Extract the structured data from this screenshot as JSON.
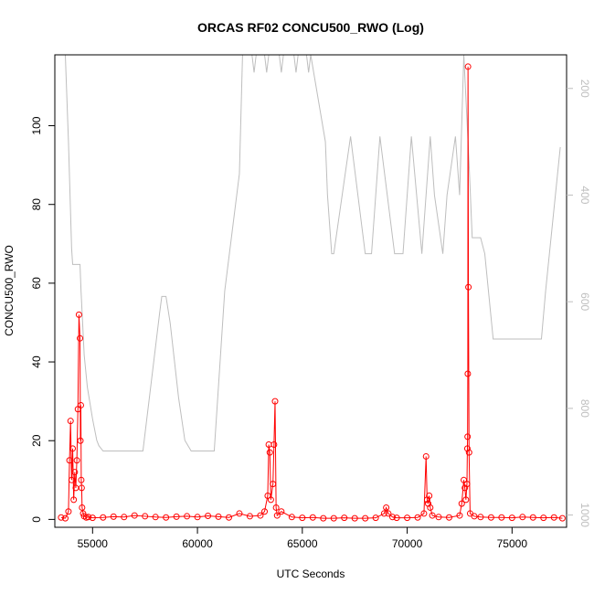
{
  "chart_data": {
    "type": "line",
    "title": "ORCAS RF02 CONCU500_RWO (Log)",
    "xlabel": "UTC Seconds",
    "ylabel": "CONCU500_RWO",
    "xlim": [
      53200,
      77600
    ],
    "ylim": [
      -2,
      118
    ],
    "x_ticks": [
      55000,
      60000,
      65000,
      70000,
      75000
    ],
    "y_ticks": [
      0,
      20,
      40,
      60,
      80,
      100
    ],
    "y2_ticks": [
      200,
      400,
      600,
      800,
      1000
    ],
    "y2lim": [
      1023,
      137
    ],
    "y2_reversed": true,
    "colors": {
      "primary": "#ff0000",
      "secondary": "#bebebe",
      "axis": "#000000"
    },
    "series": [
      {
        "axis": "left",
        "color": "#ff0000",
        "style": "line+points",
        "x": [
          53500,
          53700,
          53850,
          53900,
          53950,
          54000,
          54050,
          54100,
          54150,
          54200,
          54250,
          54300,
          54350,
          54400,
          54420,
          54440,
          54460,
          54480,
          54500,
          54550,
          54600,
          54700,
          54800,
          55000,
          55500,
          56000,
          56500,
          57000,
          57500,
          58000,
          58500,
          59000,
          59500,
          60000,
          60500,
          61000,
          61500,
          62000,
          62500,
          63000,
          63200,
          63350,
          63400,
          63450,
          63500,
          63600,
          63650,
          63700,
          63750,
          63800,
          64000,
          64500,
          65000,
          65500,
          66000,
          66500,
          67000,
          67500,
          68000,
          68500,
          68900,
          69000,
          69100,
          69300,
          69500,
          70000,
          70500,
          70800,
          70900,
          70950,
          71000,
          71050,
          71100,
          71200,
          71500,
          72000,
          72500,
          72600,
          72700,
          72750,
          72800,
          72850,
          72870,
          72880,
          72890,
          72900,
          72920,
          72950,
          73000,
          73200,
          73500,
          74000,
          74500,
          75000,
          75500,
          76000,
          76500,
          77000,
          77400
        ],
        "y": [
          0.5,
          0.3,
          2.0,
          15.0,
          25.0,
          10.0,
          18.0,
          5.0,
          12.0,
          8.0,
          15.0,
          28.0,
          52.0,
          46.0,
          20.0,
          29.0,
          10.0,
          8.0,
          3.0,
          1.5,
          0.8,
          0.5,
          0.6,
          0.4,
          0.5,
          0.7,
          0.6,
          1.0,
          0.8,
          0.6,
          0.5,
          0.7,
          0.8,
          0.6,
          0.9,
          0.7,
          0.5,
          1.5,
          0.8,
          1.0,
          2.0,
          6.0,
          19.0,
          17.0,
          5.0,
          9.0,
          19.0,
          30.0,
          3.0,
          1.0,
          2.0,
          0.6,
          0.4,
          0.5,
          0.3,
          0.3,
          0.4,
          0.3,
          0.3,
          0.4,
          1.5,
          3.0,
          1.5,
          0.6,
          0.4,
          0.4,
          0.5,
          1.5,
          16.0,
          5.0,
          4.0,
          6.0,
          3.0,
          1.0,
          0.6,
          0.5,
          1.0,
          4.0,
          10.0,
          8.0,
          5.0,
          9.0,
          18.0,
          21.0,
          37.0,
          115.0,
          59.0,
          17.0,
          1.5,
          0.8,
          0.6,
          0.5,
          0.5,
          0.4,
          0.6,
          0.5,
          0.4,
          0.5,
          0.3
        ]
      },
      {
        "axis": "right",
        "color": "#bebebe",
        "style": "line",
        "x": [
          53700,
          53850,
          54000,
          54050,
          54400,
          54450,
          54600,
          54750,
          55000,
          55200,
          55300,
          55500,
          57400,
          58200,
          58300,
          58500,
          58700,
          59100,
          59400,
          59700,
          59900,
          60000,
          60800,
          61300,
          62000,
          62150,
          62600,
          62700,
          62800,
          63200,
          63300,
          63400,
          63900,
          64000,
          64100,
          64600,
          64700,
          64800,
          65200,
          65300,
          65400,
          66100,
          66200,
          66400,
          66500,
          67300,
          68000,
          68300,
          68700,
          69400,
          69800,
          70200,
          70700,
          71100,
          71300,
          71700,
          71900,
          72300,
          72500,
          72700,
          72950,
          73100,
          73400,
          73500,
          73700,
          74100,
          74100,
          76400,
          76600,
          77300
        ],
        "y": [
          137,
          300,
          500,
          530,
          530,
          580,
          700,
          760,
          820,
          860,
          870,
          880,
          880,
          620,
          590,
          590,
          640,
          780,
          860,
          880,
          880,
          880,
          880,
          580,
          360,
          137,
          137,
          170,
          137,
          137,
          170,
          137,
          137,
          170,
          137,
          137,
          170,
          137,
          137,
          170,
          137,
          300,
          400,
          510,
          510,
          290,
          510,
          510,
          290,
          510,
          510,
          290,
          510,
          290,
          400,
          510,
          400,
          290,
          400,
          137,
          340,
          480,
          480,
          480,
          510,
          670,
          670,
          670,
          580,
          310
        ]
      }
    ]
  }
}
